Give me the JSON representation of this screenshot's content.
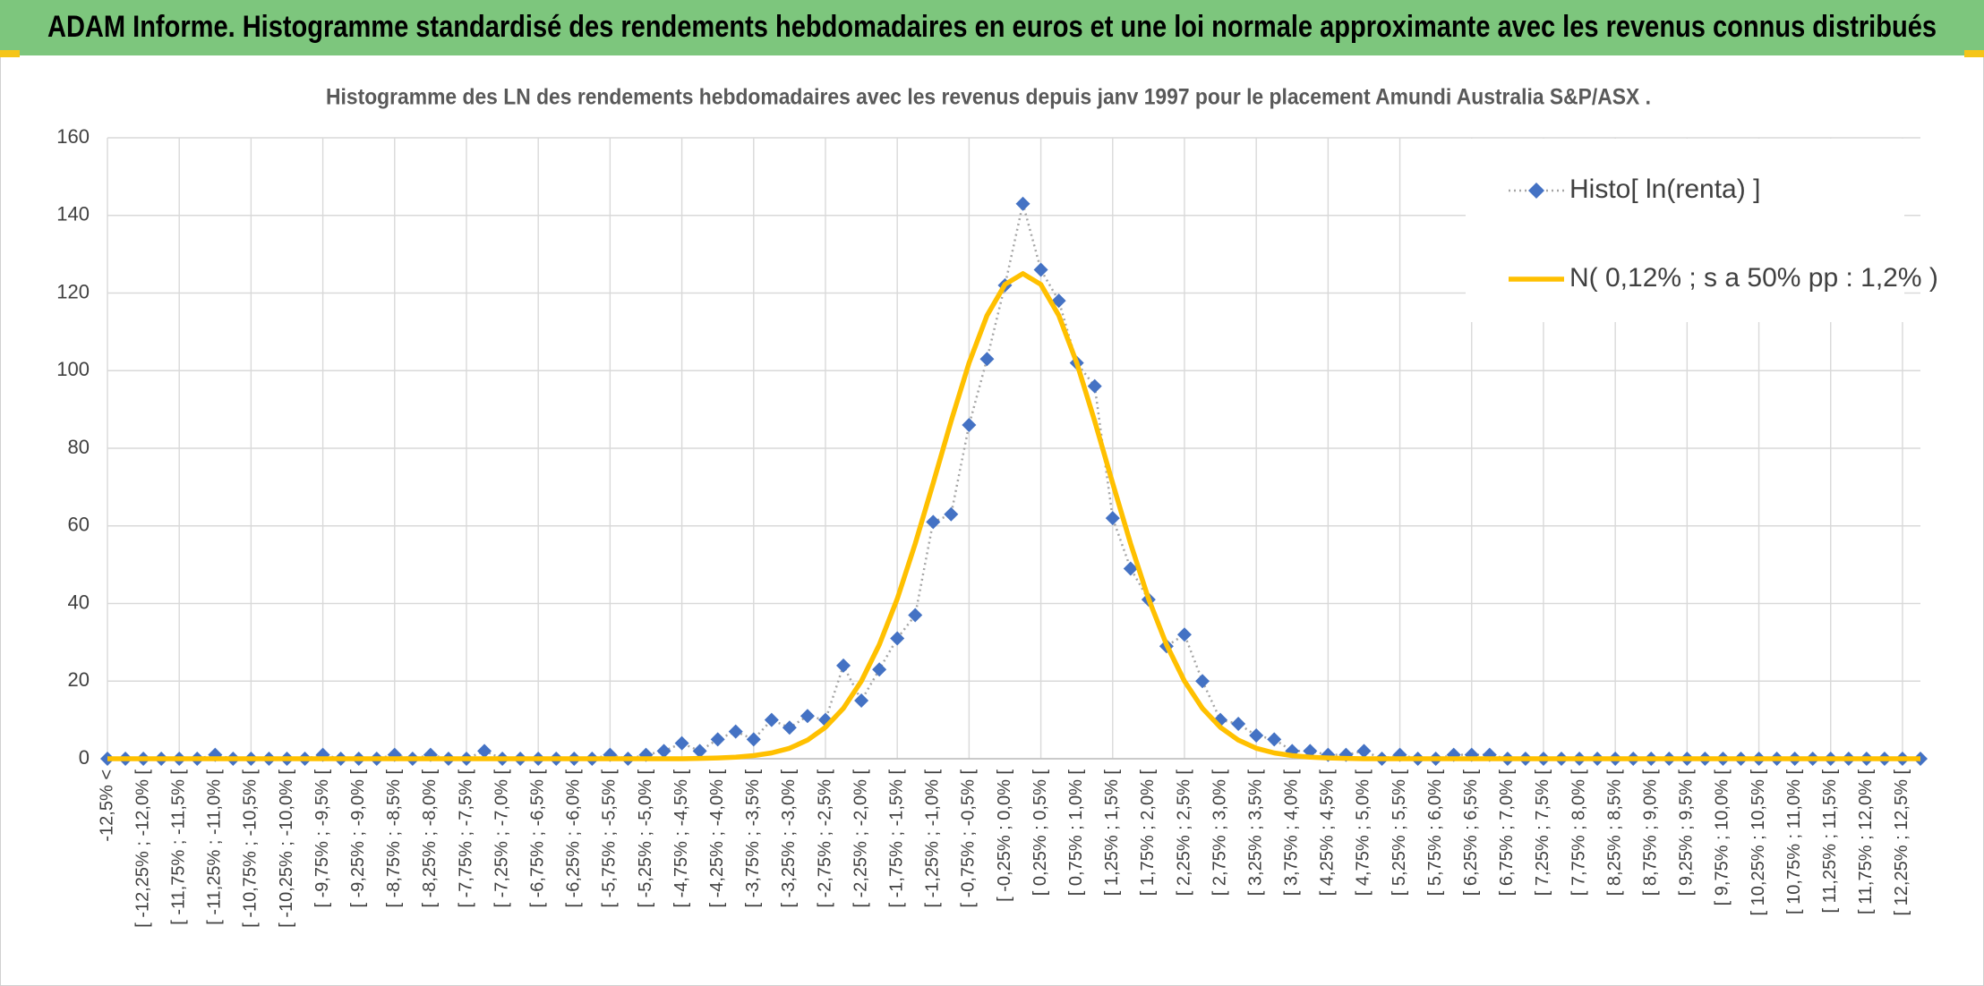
{
  "header": {
    "title": "ADAM Informe. Histogramme standardisé des rendements hebdomadaires en euros et une loi normale approximante avec les revenus connus distribués"
  },
  "chart_data": {
    "type": "line",
    "title": "Histogramme des LN des rendements hebdomadaires avec les revenus depuis janv 1997 pour le placement Amundi Australia S&P/ASX .",
    "categories": [
      "-12,5% <",
      null,
      "[ -12,25% ; -12,0% [",
      null,
      "[ -11,75% ; -11,5% [",
      null,
      "[ -11,25% ; -11,0% [",
      null,
      "[ -10,75% ; -10,5% [",
      null,
      "[ -10,25% ; -10,0% [",
      null,
      "[ -9,75% ; -9,5% [",
      null,
      "[ -9,25% ; -9,0% [",
      null,
      "[ -8,75% ; -8,5% [",
      null,
      "[ -8,25% ; -8,0% [",
      null,
      "[ -7,75% ; -7,5% [",
      null,
      "[ -7,25% ; -7,0% [",
      null,
      "[ -6,75% ; -6,5% [",
      null,
      "[ -6,25% ; -6,0% [",
      null,
      "[ -5,75% ; -5,5% [",
      null,
      "[ -5,25% ; -5,0% [",
      null,
      "[ -4,75% ; -4,5% [",
      null,
      "[ -4,25% ; -4,0% [",
      null,
      "[ -3,75% ; -3,5% [",
      null,
      "[ -3,25% ; -3,0% [",
      null,
      "[ -2,75% ; -2,5% [",
      null,
      "[ -2,25% ; -2,0% [",
      null,
      "[ -1,75% ; -1,5% [",
      null,
      "[ -1,25% ; -1,0% [",
      null,
      "[ -0,75% ; -0,5% [",
      null,
      "[ -0,25% ; 0,0% [",
      null,
      "[ 0,25% ; 0,5% [",
      null,
      "[ 0,75% ; 1,0% [",
      null,
      "[ 1,25% ; 1,5% [",
      null,
      "[ 1,75% ; 2,0% [",
      null,
      "[ 2,25% ; 2,5% [",
      null,
      "[ 2,75% ; 3,0% [",
      null,
      "[ 3,25% ; 3,5% [",
      null,
      "[ 3,75% ; 4,0% [",
      null,
      "[ 4,25% ; 4,5% [",
      null,
      "[ 4,75% ; 5,0% [",
      null,
      "[ 5,25% ; 5,5% [",
      null,
      "[ 5,75% ; 6,0% [",
      null,
      "[ 6,25% ; 6,5% [",
      null,
      "[ 6,75% ; 7,0% [",
      null,
      "[ 7,25% ; 7,5% [",
      null,
      "[ 7,75% ; 8,0% [",
      null,
      "[ 8,25% ; 8,5% [",
      null,
      "[ 8,75% ; 9,0% [",
      null,
      "[ 9,25% ; 9,5% [",
      null,
      "[ 9,75% ; 10,0% [",
      null,
      "[ 10,25% ; 10,5% [",
      null,
      "[ 10,75% ; 11,0% [",
      null,
      "[ 11,25% ; 11,5% [",
      null,
      "[ 11,75% ; 12,0% [",
      null,
      "[ 12,25% ; 12,5% [",
      null
    ],
    "series": [
      {
        "name": "Histo[ ln(renta) ]",
        "color": "#4472c4",
        "line_color": "#a5a5a5",
        "marker": "diamond",
        "values": [
          0,
          0,
          0,
          0,
          0,
          0,
          1,
          0,
          0,
          0,
          0,
          0,
          1,
          0,
          0,
          0,
          1,
          0,
          1,
          0,
          0,
          2,
          0,
          0,
          0,
          0,
          0,
          0,
          1,
          0,
          1,
          2,
          4,
          2,
          5,
          7,
          5,
          10,
          8,
          11,
          10,
          24,
          15,
          23,
          31,
          37,
          61,
          63,
          86,
          103,
          122,
          143,
          126,
          118,
          102,
          96,
          62,
          49,
          41,
          29,
          32,
          20,
          10,
          9,
          6,
          5,
          2,
          2,
          1,
          1,
          2,
          0,
          1,
          0,
          0,
          1,
          1,
          1,
          0,
          0,
          0,
          0,
          0,
          0,
          0,
          0,
          0,
          0,
          0,
          0,
          0,
          0,
          0,
          0,
          0,
          0,
          0,
          0,
          0,
          0,
          0,
          0
        ]
      },
      {
        "name": "N( 0,12% ; s a 50% pp : 1,2% )",
        "color": "#ffc000",
        "values": [
          0,
          0,
          0,
          0,
          0,
          0,
          0,
          0,
          0,
          0,
          0,
          0,
          0,
          0,
          0,
          0,
          0,
          0,
          0,
          0,
          0,
          0,
          0,
          0,
          0,
          0,
          0,
          0,
          0,
          0,
          0,
          0,
          0,
          0.1,
          0.2,
          0.4,
          0.8,
          1.5,
          2.7,
          4.8,
          8.1,
          13,
          20,
          29.4,
          41.2,
          55.4,
          71,
          87,
          102,
          114.2,
          122.2,
          125,
          122.2,
          114.2,
          102,
          87,
          71,
          55.4,
          41.2,
          29.4,
          20,
          13,
          8.1,
          4.8,
          2.7,
          1.5,
          0.8,
          0.4,
          0.2,
          0.1,
          0,
          0,
          0,
          0,
          0,
          0,
          0,
          0,
          0,
          0,
          0,
          0,
          0,
          0,
          0,
          0,
          0,
          0,
          0,
          0,
          0,
          0,
          0,
          0,
          0,
          0,
          0,
          0,
          0,
          0,
          0,
          0
        ]
      }
    ],
    "ylim": [
      0,
      160
    ],
    "yticks": [
      0,
      20,
      40,
      60,
      80,
      100,
      120,
      140,
      160
    ],
    "grid": true,
    "legend": "top-right"
  }
}
